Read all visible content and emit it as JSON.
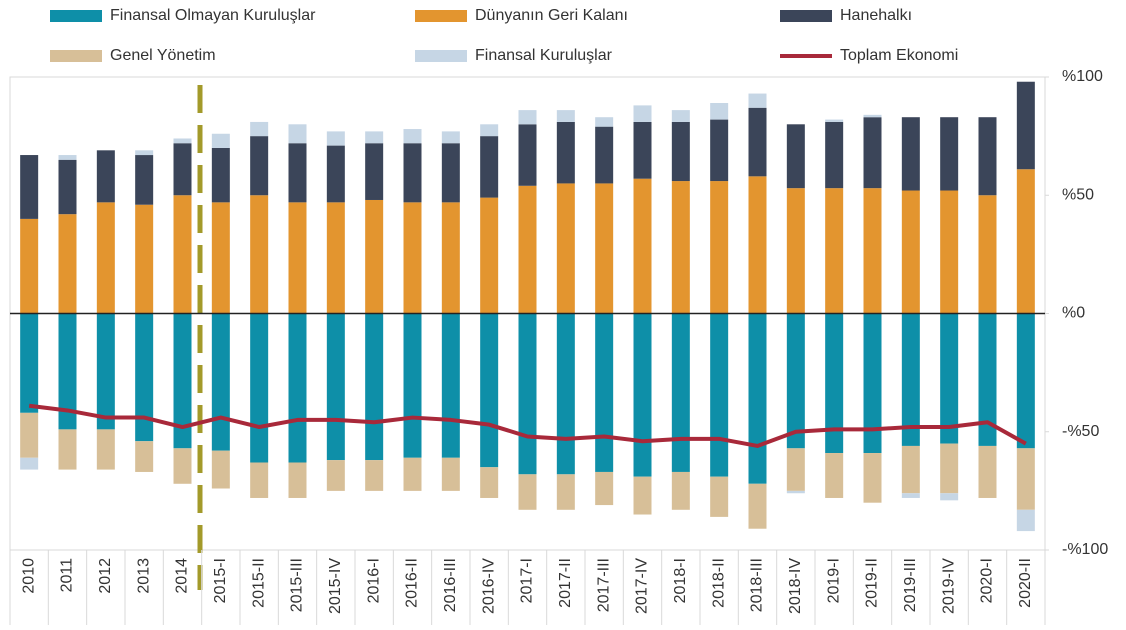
{
  "chart_data": {
    "type": "bar",
    "categories": [
      "2010",
      "2011",
      "2012",
      "2013",
      "2014",
      "2015-I",
      "2015-II",
      "2015-III",
      "2015-IV",
      "2016-I",
      "2016-II",
      "2016-III",
      "2016-IV",
      "2017-I",
      "2017-II",
      "2017-III",
      "2017-IV",
      "2018-I",
      "2018-II",
      "2018-III",
      "2018-IV",
      "2019-I",
      "2019-II",
      "2019-III",
      "2019-IV",
      "2020-I",
      "2020-II"
    ],
    "series": [
      {
        "name": "Finansal Olmayan Kuruluşlar",
        "color": "#0e8fa8",
        "values": [
          -42,
          -49,
          -49,
          -54,
          -57,
          -58,
          -63,
          -63,
          -62,
          -62,
          -61,
          -61,
          -65,
          -68,
          -68,
          -67,
          -69,
          -67,
          -69,
          -72,
          -57,
          -59,
          -59,
          -56,
          -55,
          -56,
          -57
        ]
      },
      {
        "name": "Dünyanın Geri Kalanı",
        "color": "#e3952f",
        "values": [
          40,
          42,
          47,
          46,
          50,
          47,
          50,
          47,
          47,
          48,
          47,
          47,
          49,
          54,
          55,
          55,
          57,
          56,
          56,
          58,
          53,
          53,
          53,
          52,
          52,
          50,
          61
        ]
      },
      {
        "name": "Hanehalkı",
        "color": "#3b4559",
        "values": [
          27,
          23,
          22,
          21,
          22,
          23,
          25,
          25,
          24,
          24,
          25,
          25,
          26,
          26,
          26,
          24,
          24,
          25,
          26,
          29,
          27,
          28,
          30,
          31,
          31,
          33,
          37
        ]
      },
      {
        "name": "Genel Yönetim",
        "color": "#d7bf98",
        "values": [
          -19,
          -17,
          -17,
          -13,
          -15,
          -16,
          -15,
          -15,
          -13,
          -13,
          -14,
          -14,
          -13,
          -15,
          -15,
          -14,
          -16,
          -16,
          -17,
          -19,
          -18,
          -19,
          -21,
          -20,
          -21,
          -22,
          -26
        ]
      },
      {
        "name": "Finansal Kuruluşlar",
        "color": "#c6d6e5",
        "values": [
          -5,
          2,
          0,
          2,
          2,
          6,
          6,
          8,
          6,
          5,
          6,
          5,
          5,
          6,
          5,
          4,
          7,
          5,
          7,
          6,
          -1,
          1,
          1,
          -2,
          -3,
          0,
          -9
        ]
      },
      {
        "name": "Toplam Ekonomi",
        "color": "#a8293a",
        "type": "line",
        "values": [
          -39,
          -41,
          -44,
          -44,
          -48,
          -44,
          -48,
          -45,
          -45,
          -46,
          -44,
          -45,
          -47,
          -52,
          -53,
          -52,
          -54,
          -53,
          -53,
          -56,
          -50,
          -49,
          -49,
          -48,
          -48,
          -46,
          -55
        ]
      }
    ],
    "ylim": [
      -100,
      100
    ],
    "yticks": [
      {
        "value": -100,
        "label": "-%100"
      },
      {
        "value": -50,
        "label": "-%50"
      },
      {
        "value": 0,
        "label": "%0"
      },
      {
        "value": 50,
        "label": "%50"
      },
      {
        "value": 100,
        "label": "%100"
      }
    ]
  }
}
